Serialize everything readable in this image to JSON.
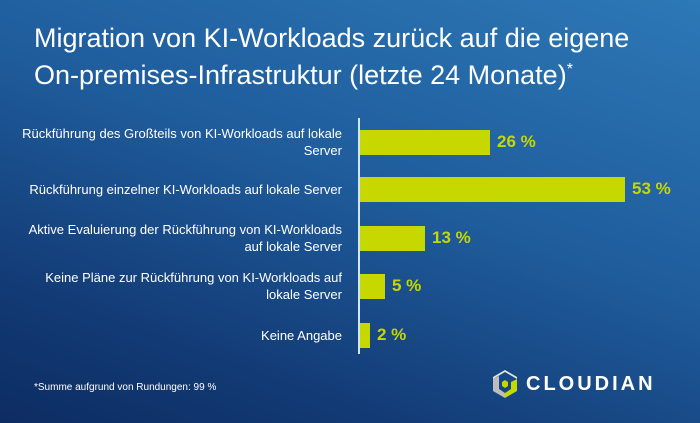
{
  "chart_data": {
    "type": "bar",
    "orientation": "horizontal",
    "title": "Migration von KI-Workloads zurück auf die eigene On-premises-Infrastruktur (letzte 24 Monate)",
    "title_mark": "*",
    "categories": [
      "Rückführung des Großteils von KI-Workloads auf lokale Server",
      "Rückführung einzelner KI-Workloads auf lokale Server",
      "Aktive Evaluierung der Rückführung von KI-Workloads auf lokale Server",
      "Keine Pläne zur Rückführung von KI-Workloads auf lokale Server",
      "Keine Angabe"
    ],
    "values": [
      26,
      53,
      13,
      5,
      2
    ],
    "value_labels": [
      "26 %",
      "53 %",
      "13 %",
      "5 %",
      "2 %"
    ],
    "unit": "%",
    "bar_color": "#c6d800",
    "grid": false
  },
  "footnote": "*Summe aufgrund von Rundungen: 99 %",
  "logo": {
    "text": "CLOUDIAN"
  }
}
